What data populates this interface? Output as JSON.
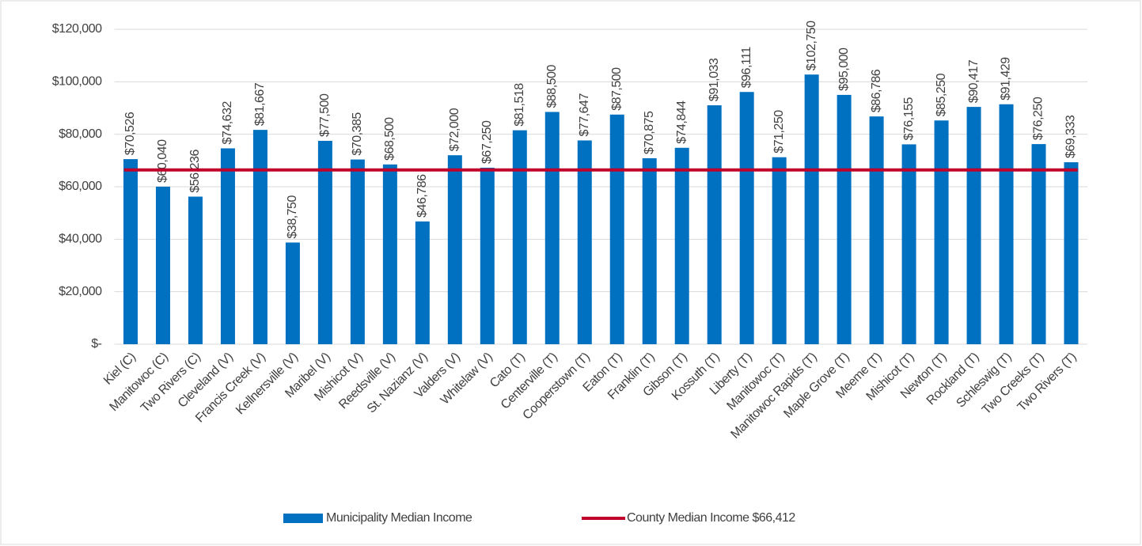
{
  "chart_data": {
    "type": "bar",
    "categories": [
      "Kiel (C)",
      "Manitowoc (C)",
      "Two Rivers (C)",
      "Cleveland (V)",
      "Francis Creek (V)",
      "Kellnersville (V)",
      "Maribel (V)",
      "Mishicot (V)",
      "Reedsville (V)",
      "St. Nazianz (V)",
      "Valders (V)",
      "Whitelaw (V)",
      "Cato (T)",
      "Centerville (T)",
      "Cooperstown (T)",
      "Eaton (T)",
      "Franklin (T)",
      "Gibson (T)",
      "Kossuth (T)",
      "Liberty (T)",
      "Manitowoc (T)",
      "Manitowoc Rapids (T)",
      "Maple Grove (T)",
      "Meeme (T)",
      "Mishicot (T)",
      "Newton (T)",
      "Rockland (T)",
      "Schleswig (T)",
      "Two Creeks (T)",
      "Two Rivers (T)"
    ],
    "series": [
      {
        "name": "Municipality Median Income",
        "color": "#0070c0",
        "values": [
          70526,
          60040,
          56236,
          74632,
          81667,
          38750,
          77500,
          70385,
          68500,
          46786,
          72000,
          67250,
          81518,
          88500,
          77647,
          87500,
          70875,
          74844,
          91033,
          96111,
          71250,
          102750,
          95000,
          86786,
          76155,
          85250,
          90417,
          91429,
          76250,
          69333
        ],
        "value_labels": [
          "$70,526",
          "$60,040",
          "$56,236",
          "$74,632",
          "$81,667",
          "$38,750",
          "$77,500",
          "$70,385",
          "$68,500",
          "$46,786",
          "$72,000",
          "$67,250",
          "$81,518",
          "$88,500",
          "$77,647",
          "$87,500",
          "$70,875",
          "$74,844",
          "$91,033",
          "$96,111",
          "$71,250",
          "$102,750",
          "$95,000",
          "$86,786",
          "$76,155",
          "$85,250",
          "$90,417",
          "$91,429",
          "$76,250",
          "$69,333"
        ]
      }
    ],
    "reference_line": {
      "name": "County Median Income $66,412",
      "value": 66412,
      "color": "#c0002a"
    },
    "ylim": [
      0,
      120000
    ],
    "yticks": [
      {
        "value": 0,
        "label": "$-"
      },
      {
        "value": 20000,
        "label": "$20,000"
      },
      {
        "value": 40000,
        "label": "$40,000"
      },
      {
        "value": 60000,
        "label": "$60,000"
      },
      {
        "value": 80000,
        "label": "$80,000"
      },
      {
        "value": 100000,
        "label": "$100,000"
      },
      {
        "value": 120000,
        "label": "$120,000"
      }
    ],
    "grid": true,
    "legend": "bottom"
  }
}
